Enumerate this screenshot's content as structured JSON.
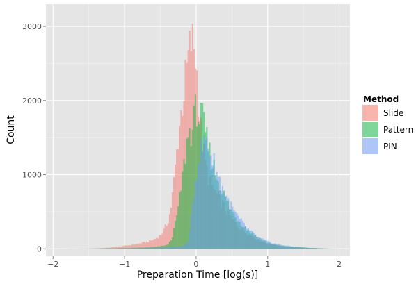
{
  "chart_data": {
    "type": "histogram",
    "xlabel": "Preparation Time [log(s)]",
    "ylabel": "Count",
    "xlim": [
      -2.1,
      2.15
    ],
    "ylim": [
      -100,
      3300
    ],
    "x_ticks": [
      -2,
      -1,
      0,
      1,
      2
    ],
    "x_tick_labels": [
      "−2",
      "−1",
      "0",
      "1",
      "2"
    ],
    "y_ticks": [
      0,
      1000,
      2000,
      3000
    ],
    "y_tick_labels": [
      "0",
      "1000",
      "2000",
      "3000"
    ],
    "grid": true,
    "bin_width": 0.02,
    "legend": {
      "title": "Method",
      "position": "right",
      "entries": [
        "Slide",
        "Pattern",
        "PIN"
      ]
    },
    "series": [
      {
        "name": "Slide",
        "color": "#f8766d",
        "opacity": 0.5,
        "points": [
          [
            -2,
            0
          ],
          [
            -1.5,
            5
          ],
          [
            -1.2,
            15
          ],
          [
            -1.0,
            40
          ],
          [
            -0.8,
            70
          ],
          [
            -0.7,
            90
          ],
          [
            -0.6,
            120
          ],
          [
            -0.5,
            180
          ],
          [
            -0.45,
            250
          ],
          [
            -0.4,
            350
          ],
          [
            -0.36,
            500
          ],
          [
            -0.32,
            800
          ],
          [
            -0.28,
            1200
          ],
          [
            -0.24,
            1600
          ],
          [
            -0.2,
            1900
          ],
          [
            -0.16,
            2200
          ],
          [
            -0.12,
            2500
          ],
          [
            -0.08,
            2750
          ],
          [
            -0.06,
            2800
          ],
          [
            -0.04,
            2750
          ],
          [
            -0.02,
            2700
          ],
          [
            0.0,
            2500
          ],
          [
            0.02,
            2200
          ],
          [
            0.04,
            1900
          ],
          [
            0.08,
            1500
          ],
          [
            0.12,
            1200
          ],
          [
            0.16,
            1000
          ],
          [
            0.2,
            900
          ],
          [
            0.3,
            700
          ],
          [
            0.4,
            550
          ],
          [
            0.5,
            400
          ],
          [
            0.6,
            300
          ],
          [
            0.7,
            220
          ],
          [
            0.8,
            160
          ],
          [
            0.9,
            110
          ],
          [
            1.0,
            70
          ],
          [
            1.2,
            35
          ],
          [
            1.4,
            15
          ],
          [
            1.6,
            7
          ],
          [
            1.8,
            3
          ],
          [
            2.0,
            0
          ]
        ]
      },
      {
        "name": "Pattern",
        "color": "#00ba38",
        "opacity": 0.5,
        "points": [
          [
            -2,
            0
          ],
          [
            -1.5,
            2
          ],
          [
            -1.0,
            10
          ],
          [
            -0.6,
            20
          ],
          [
            -0.4,
            50
          ],
          [
            -0.36,
            100
          ],
          [
            -0.32,
            200
          ],
          [
            -0.28,
            400
          ],
          [
            -0.24,
            600
          ],
          [
            -0.2,
            900
          ],
          [
            -0.16,
            1200
          ],
          [
            -0.12,
            1500
          ],
          [
            -0.08,
            1600
          ],
          [
            -0.06,
            1600
          ],
          [
            -0.04,
            1650
          ],
          [
            -0.02,
            1800
          ],
          [
            0.0,
            1900
          ],
          [
            0.02,
            1900
          ],
          [
            0.04,
            1700
          ],
          [
            0.06,
            1800
          ],
          [
            0.1,
            1700
          ],
          [
            0.14,
            1500
          ],
          [
            0.2,
            1250
          ],
          [
            0.3,
            950
          ],
          [
            0.4,
            700
          ],
          [
            0.5,
            500
          ],
          [
            0.6,
            380
          ],
          [
            0.7,
            280
          ],
          [
            0.8,
            200
          ],
          [
            0.9,
            130
          ],
          [
            1.0,
            85
          ],
          [
            1.1,
            55
          ],
          [
            1.2,
            40
          ],
          [
            1.4,
            25
          ],
          [
            1.6,
            12
          ],
          [
            1.8,
            5
          ],
          [
            2.0,
            0
          ]
        ]
      },
      {
        "name": "PIN",
        "color": "#619cff",
        "opacity": 0.5,
        "points": [
          [
            -2,
            0
          ],
          [
            -1.0,
            5
          ],
          [
            -0.5,
            15
          ],
          [
            -0.2,
            30
          ],
          [
            -0.12,
            80
          ],
          [
            -0.1,
            150
          ],
          [
            -0.08,
            300
          ],
          [
            -0.06,
            500
          ],
          [
            -0.04,
            700
          ],
          [
            -0.02,
            850
          ],
          [
            0.0,
            1000
          ],
          [
            0.02,
            1150
          ],
          [
            0.04,
            1250
          ],
          [
            0.06,
            1300
          ],
          [
            0.08,
            1350
          ],
          [
            0.1,
            1400
          ],
          [
            0.12,
            1450
          ],
          [
            0.14,
            1500
          ],
          [
            0.16,
            1450
          ],
          [
            0.2,
            1300
          ],
          [
            0.25,
            1150
          ],
          [
            0.3,
            1000
          ],
          [
            0.4,
            750
          ],
          [
            0.5,
            550
          ],
          [
            0.6,
            400
          ],
          [
            0.7,
            290
          ],
          [
            0.8,
            200
          ],
          [
            0.9,
            140
          ],
          [
            1.0,
            95
          ],
          [
            1.2,
            50
          ],
          [
            1.4,
            25
          ],
          [
            1.6,
            12
          ],
          [
            1.8,
            5
          ],
          [
            2.0,
            0
          ]
        ]
      }
    ]
  }
}
